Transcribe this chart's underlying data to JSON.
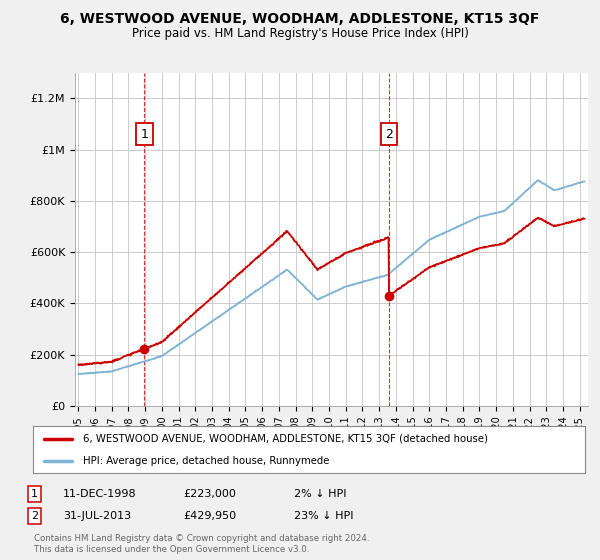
{
  "title": "6, WESTWOOD AVENUE, WOODHAM, ADDLESTONE, KT15 3QF",
  "subtitle": "Price paid vs. HM Land Registry's House Price Index (HPI)",
  "ylim": [
    0,
    1300000
  ],
  "yticks": [
    0,
    200000,
    400000,
    600000,
    800000,
    1000000,
    1200000
  ],
  "ytick_labels": [
    "£0",
    "£200K",
    "£400K",
    "£600K",
    "£800K",
    "£1M",
    "£1.2M"
  ],
  "line_color_property": "#cc0000",
  "line_color_hpi": "#7fb3d3",
  "bg_color": "#f0f0f0",
  "plot_bg": "#ffffff",
  "grid_color": "#cccccc",
  "ann1_x": 1998.95,
  "ann1_y": 223000,
  "ann1_date": "11-DEC-1998",
  "ann1_price": "£223,000",
  "ann1_pct": "2% ↓ HPI",
  "ann2_x": 2013.58,
  "ann2_y": 429950,
  "ann2_date": "31-JUL-2013",
  "ann2_price": "£429,950",
  "ann2_pct": "23% ↓ HPI",
  "legend_property": "6, WESTWOOD AVENUE, WOODHAM, ADDLESTONE, KT15 3QF (detached house)",
  "legend_hpi": "HPI: Average price, detached house, Runnymede",
  "footnote1": "Contains HM Land Registry data © Crown copyright and database right 2024.",
  "footnote2": "This data is licensed under the Open Government Licence v3.0.",
  "xmin": 1994.8,
  "xmax": 2025.5,
  "xtick_years": [
    1995,
    1996,
    1997,
    1998,
    1999,
    2000,
    2001,
    2002,
    2003,
    2004,
    2005,
    2006,
    2007,
    2008,
    2009,
    2010,
    2011,
    2012,
    2013,
    2014,
    2015,
    2016,
    2017,
    2018,
    2019,
    2020,
    2021,
    2022,
    2023,
    2024,
    2025
  ]
}
